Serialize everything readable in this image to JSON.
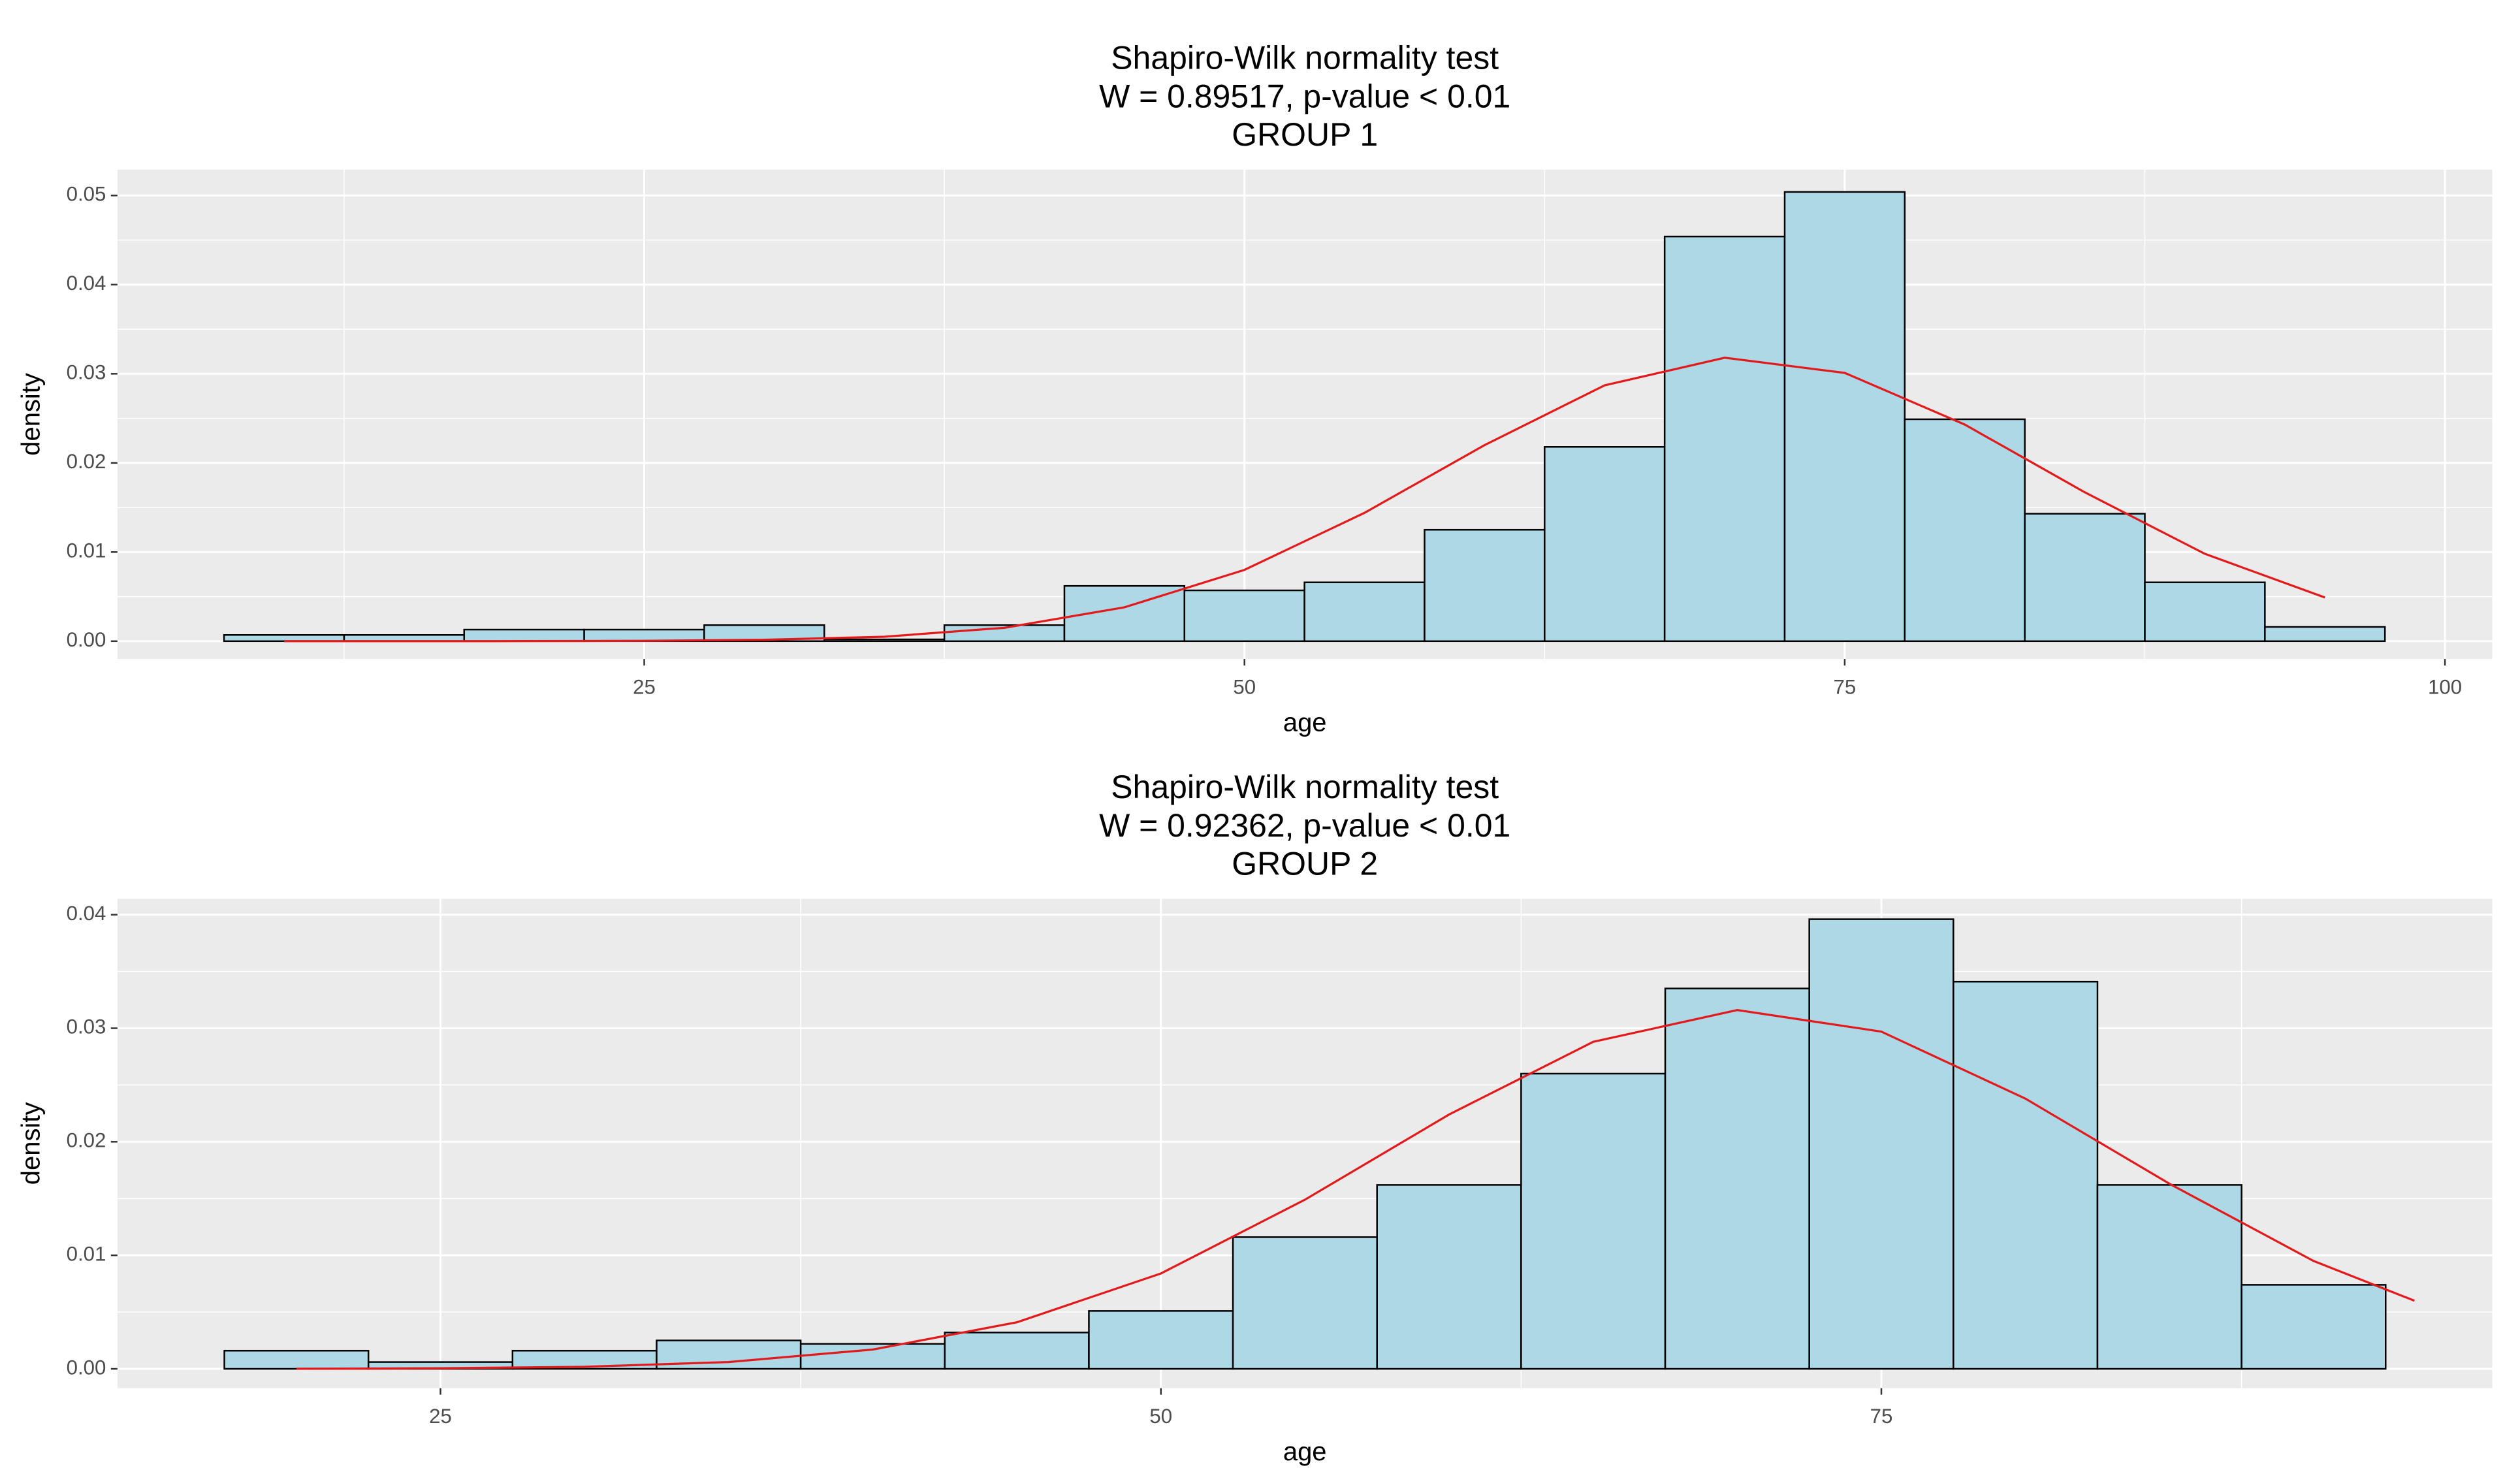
{
  "chart_data": [
    {
      "type": "histogram",
      "title": [
        "Shapiro-Wilk normality test",
        "W = 0.89517, p-value < 0.01",
        "GROUP 1"
      ],
      "xlabel": "age",
      "ylabel": "density",
      "bins": [
        7.5,
        12.5,
        17.5,
        22.5,
        27.5,
        32.5,
        37.5,
        42.5,
        47.5,
        52.5,
        57.5,
        62.5,
        67.5,
        72.5,
        77.5,
        82.5,
        87.5,
        92.5,
        97.5
      ],
      "values": [
        0.0007,
        0.0007,
        0.0013,
        0.0013,
        0.0018,
        0.0002,
        0.0018,
        0.0062,
        0.0057,
        0.0066,
        0.0125,
        0.0218,
        0.0454,
        0.0504,
        0.0249,
        0.0143,
        0.0066,
        0.0016
      ],
      "color": "#add8e6",
      "edgecolor": "#000000",
      "curve": {
        "color": "#e31a1c",
        "x": [
          10,
          15,
          20,
          25,
          30,
          35,
          40,
          45,
          50,
          55,
          60,
          65,
          70,
          75,
          80,
          85,
          90,
          95
        ],
        "values": [
          0.0,
          0.0,
          1e-05,
          4e-05,
          0.00016,
          0.0005,
          0.0015,
          0.0038,
          0.008,
          0.0144,
          0.022,
          0.0287,
          0.0318,
          0.0301,
          0.0243,
          0.0167,
          0.0098,
          0.0049
        ]
      },
      "xlim": [
        3.06,
        101.97
      ],
      "xticks": [
        25,
        50,
        75,
        100
      ],
      "ylim": [
        -0.002,
        0.0529
      ],
      "yticks": [
        {
          "value": 0,
          "label": "0.00"
        },
        {
          "value": 0.01,
          "label": "0.01"
        },
        {
          "value": 0.02,
          "label": "0.02"
        },
        {
          "value": 0.03,
          "label": "0.03"
        },
        {
          "value": 0.04,
          "label": "0.04"
        },
        {
          "value": 0.05,
          "label": "0.05"
        }
      ],
      "grid": true
    },
    {
      "type": "histogram",
      "title": [
        "Shapiro-Wilk normality test",
        "W = 0.92362, p-value < 0.01",
        "GROUP 2"
      ],
      "xlabel": "age",
      "ylabel": "density",
      "bins": [
        17.5,
        22.5,
        27.5,
        32.5,
        37.5,
        42.5,
        47.5,
        52.5,
        57.5,
        62.5,
        67.5,
        72.5,
        77.5,
        82.5,
        87.5,
        92.5
      ],
      "values": [
        0.0016,
        0.0006,
        0.0016,
        0.0025,
        0.0022,
        0.0032,
        0.0051,
        0.0116,
        0.0162,
        0.026,
        0.0335,
        0.0396,
        0.0341,
        0.0162,
        0.0074
      ],
      "color": "#add8e6",
      "edgecolor": "#000000",
      "curve": {
        "color": "#e31a1c",
        "x": [
          20,
          25,
          30,
          35,
          40,
          45,
          50,
          55,
          60,
          65,
          70,
          75,
          80,
          85,
          90,
          93.5
        ],
        "values": [
          1e-05,
          5e-05,
          0.00018,
          0.0006,
          0.0017,
          0.0041,
          0.0084,
          0.0149,
          0.0224,
          0.0288,
          0.0316,
          0.0297,
          0.0238,
          0.0163,
          0.0095,
          0.006
        ]
      },
      "xlim": [
        13.79,
        96.2
      ],
      "xticks": [
        25,
        50,
        75
      ],
      "ylim": [
        -0.0017,
        0.0414
      ],
      "yticks": [
        {
          "value": 0,
          "label": "0.00"
        },
        {
          "value": 0.01,
          "label": "0.01"
        },
        {
          "value": 0.02,
          "label": "0.02"
        },
        {
          "value": 0.03,
          "label": "0.03"
        },
        {
          "value": 0.04,
          "label": "0.04"
        }
      ],
      "grid": true
    }
  ]
}
